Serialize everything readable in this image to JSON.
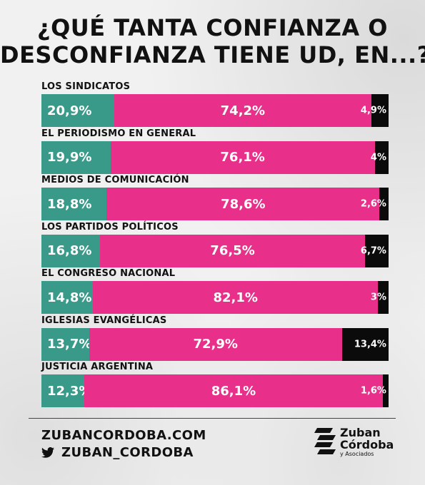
{
  "title_lines": [
    "¿QUÉ TANTA CONFIANZA O",
    "DESCONFIANZA TIENE UD, EN...?"
  ],
  "colors": {
    "trust": "#3a9a8a",
    "distrust": "#e8308a",
    "nr": "#0b0b0b"
  },
  "chart_data": {
    "type": "bar",
    "stacked": true,
    "orientation": "horizontal",
    "categories": [
      "LOS SINDICATOS",
      "EL PERIODISMO EN GENERAL",
      "MEDIOS  DE COMUNICACIÓN",
      "LOS PARTIDOS POLÍTICOS",
      "EL CONGRESO NACIONAL",
      "IGLESIAS EVANGÉLICAS",
      "JUSTICIA ARGENTINA"
    ],
    "series": [
      {
        "values": [
          20.9,
          19.9,
          18.8,
          16.8,
          14.8,
          13.7,
          12.3
        ],
        "labels": [
          "20,9%",
          "19,9%",
          "18,8%",
          "16,8%",
          "14,8%",
          "13,7%",
          "12,3%"
        ]
      },
      {
        "values": [
          74.2,
          76.1,
          78.6,
          76.5,
          82.1,
          72.9,
          86.1
        ],
        "labels": [
          "74,2%",
          "76,1%",
          "78,6%",
          "76,5%",
          "82,1%",
          "72,9%",
          "86,1%"
        ]
      },
      {
        "values": [
          4.9,
          4,
          2.6,
          6.7,
          3,
          13.4,
          1.6
        ],
        "labels": [
          "4,9%",
          "4%",
          "2,6%",
          "6,7%",
          "3%",
          "13,4%",
          "1,6%"
        ]
      }
    ]
  },
  "footer": {
    "website": "ZUBANCORDOBA.COM",
    "twitter_icon": "twitter-bird-icon",
    "twitter_handle": "ZUBAN_CORDOBA",
    "logo_line1": "Zuban",
    "logo_line2": "Córdoba",
    "logo_line3": "y Asociados",
    "logo_icon": "zuban-stripes-logo-icon"
  }
}
